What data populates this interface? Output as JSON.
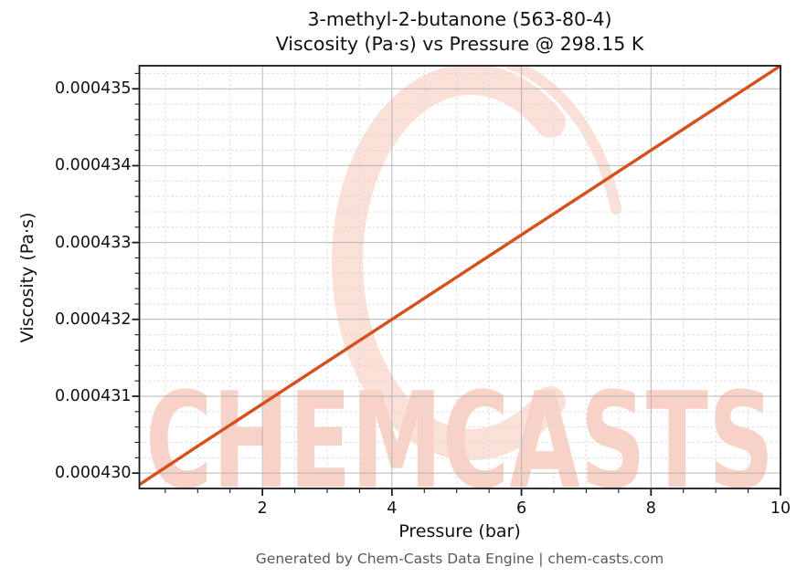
{
  "title": {
    "line1": "3-methyl-2-butanone (563-80-4)",
    "line2": "Viscosity (Pa·s) vs Pressure @ 298.15 K"
  },
  "footer": "Generated by Chem-Casts Data Engine | chem-casts.com",
  "watermark": {
    "text": "CHEMCASTS",
    "text_color": "#f8d2c6",
    "ring_color": "#fbe0d8"
  },
  "chart_data": {
    "type": "line",
    "title": "3-methyl-2-butanone (563-80-4) — Viscosity (Pa·s) vs Pressure @ 298.15 K",
    "xlabel": "Pressure (bar)",
    "ylabel": "Viscosity (Pa·s)",
    "xlim": [
      0.1,
      10
    ],
    "ylim": [
      0.0004298,
      0.0004353
    ],
    "grid": true,
    "legend": "none",
    "line_color": "#d4511d",
    "major_grid_color": "#b4b4b4",
    "minor_grid_color": "#dcdcdc",
    "series": [
      {
        "name": "Viscosity vs Pressure @ 298.15 K",
        "x": [
          0.1,
          1,
          2,
          3,
          4,
          5,
          6,
          7,
          8,
          9,
          10
        ],
        "y": [
          0.00042985,
          0.00043035,
          0.0004309,
          0.00043145,
          0.000432,
          0.00043255,
          0.0004331,
          0.00043365,
          0.0004342,
          0.00043475,
          0.0004353
        ]
      }
    ],
    "xticks": {
      "values": [
        2,
        4,
        6,
        8,
        10
      ],
      "labels": [
        "2",
        "4",
        "6",
        "8",
        "10"
      ]
    },
    "yticks": {
      "values": [
        0.00043,
        0.000431,
        0.000432,
        0.000433,
        0.000434,
        0.000435
      ],
      "labels": [
        "0.000430",
        "0.000431",
        "0.000432",
        "0.000433",
        "0.000434",
        "0.000435"
      ]
    },
    "x_minor_step": 0.5,
    "y_minor_step": 2e-07
  }
}
